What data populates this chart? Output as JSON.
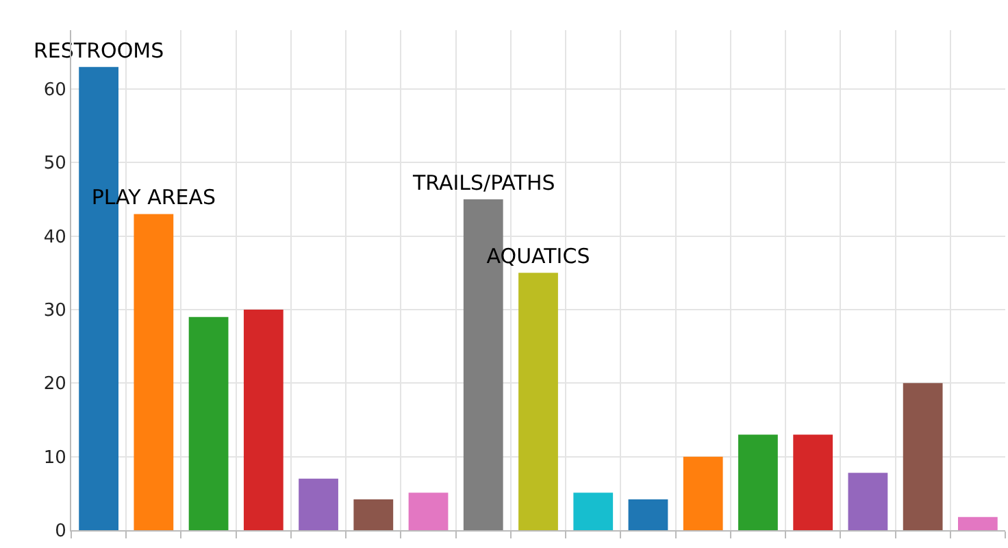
{
  "chart_data": {
    "type": "bar",
    "categories": [
      null,
      null,
      null,
      null,
      null,
      null,
      null,
      null,
      null,
      null,
      null,
      null,
      null,
      null,
      null,
      null,
      null
    ],
    "values": [
      63,
      43,
      29,
      30,
      7,
      4.2,
      5.1,
      45,
      35,
      5.1,
      4.2,
      10,
      13,
      13,
      7.8,
      20,
      1.8
    ],
    "colors": [
      "#1f77b4",
      "#ff7f0e",
      "#2ca02c",
      "#d62728",
      "#9467bd",
      "#8c564b",
      "#e377c2",
      "#7f7f7f",
      "#bcbd22",
      "#17becf",
      "#1f77b4",
      "#ff7f0e",
      "#2ca02c",
      "#d62728",
      "#9467bd",
      "#8c564b",
      "#e377c2"
    ],
    "value_labels": [
      "RESTROOMS",
      "PLAY AREAS",
      null,
      null,
      null,
      null,
      null,
      "TRAILS/PATHS",
      "AQUATICS",
      null,
      null,
      null,
      null,
      null,
      null,
      null,
      null
    ],
    "ylim": [
      0,
      68
    ],
    "yticks": [
      0,
      10,
      20,
      30,
      40,
      50,
      60
    ],
    "grid": true
  }
}
